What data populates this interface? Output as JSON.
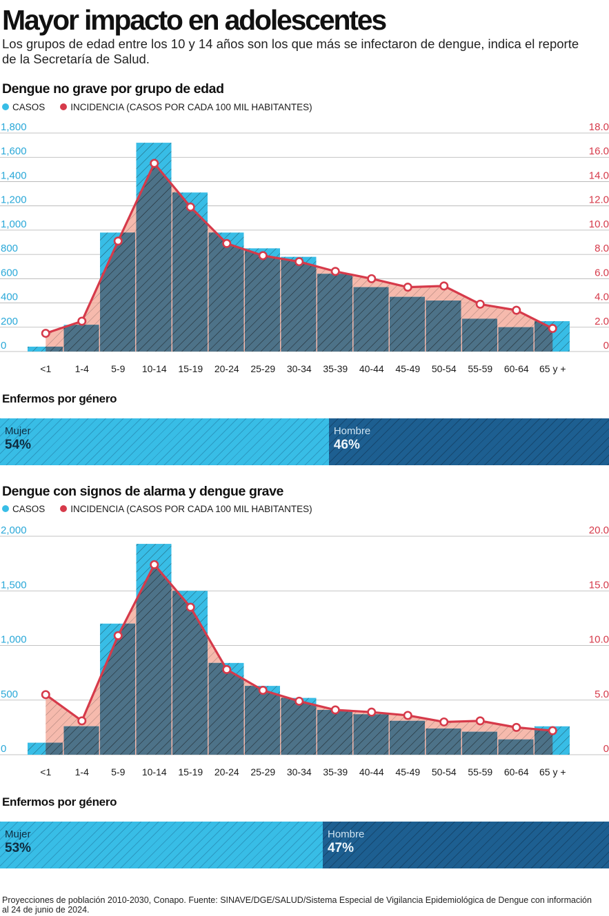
{
  "title": "Mayor impacto en adolescentes",
  "subtitle": "Los grupos de edad entre los 10 y 14 años son los que más se infectaron de dengue, indica el reporte de la Secretaría de Salud.",
  "colors": {
    "bars": "#38bde6",
    "overlap": "#4d7288",
    "incidence": "#d63a4a",
    "incidence_fill": "#f4a998",
    "left_axis": "#2aa8d8",
    "right_axis": "#d63a4a",
    "women": "#38bde6",
    "men": "#1d5f91"
  },
  "legend": {
    "cases": "CASOS",
    "incidence": "INCIDENCIA (CASOS POR CADA 100 MIL HABITANTES)"
  },
  "gender_title": "Enfermos por género",
  "chart_data": [
    {
      "type": "bar+line",
      "title": "Dengue no grave por grupo de edad",
      "categories": [
        "<1",
        "1-4",
        "5-9",
        "10-14",
        "15-19",
        "20-24",
        "25-29",
        "30-34",
        "35-39",
        "40-44",
        "45-49",
        "50-54",
        "55-59",
        "60-64",
        "65 y +"
      ],
      "series": [
        {
          "name": "CASOS",
          "axis": "left",
          "values": [
            40,
            220,
            980,
            1720,
            1310,
            980,
            850,
            780,
            640,
            530,
            450,
            420,
            270,
            200,
            250
          ]
        },
        {
          "name": "INCIDENCIA (CASOS POR CADA 100 MIL HABITANTES)",
          "axis": "right",
          "values": [
            1.5,
            2.5,
            9.1,
            15.5,
            11.9,
            8.9,
            7.9,
            7.4,
            6.6,
            6.0,
            5.3,
            5.4,
            3.9,
            3.4,
            1.9
          ]
        }
      ],
      "ylim_left": [
        0,
        1800
      ],
      "ylim_right": [
        0,
        18
      ],
      "left_ticks": [
        0,
        200,
        400,
        600,
        800,
        1000,
        1200,
        1400,
        1600,
        1800
      ],
      "left_tick_labels": [
        "0",
        "200",
        "400",
        "600",
        "800",
        "1,000",
        "1,200",
        "1,400",
        "1,600",
        "1,800"
      ],
      "right_tick_labels": [
        "0",
        "2.0",
        "4.0",
        "6.0",
        "8.0",
        "10.0",
        "12.0",
        "14.0",
        "16.0",
        "18.0"
      ],
      "grid": true
    },
    {
      "type": "bar+line",
      "title": "Dengue con signos de alarma y dengue grave",
      "categories": [
        "<1",
        "1-4",
        "5-9",
        "10-14",
        "15-19",
        "20-24",
        "25-29",
        "30-34",
        "35-39",
        "40-44",
        "45-49",
        "50-54",
        "55-59",
        "60-64",
        "65 y +"
      ],
      "series": [
        {
          "name": "CASOS",
          "axis": "left",
          "values": [
            110,
            260,
            1200,
            1930,
            1500,
            840,
            630,
            520,
            410,
            370,
            310,
            240,
            210,
            140,
            260
          ]
        },
        {
          "name": "INCIDENCIA (CASOS POR CADA 100 MIL HABITANTES)",
          "axis": "right",
          "values": [
            5.5,
            3.1,
            10.9,
            17.4,
            13.5,
            7.8,
            5.9,
            4.9,
            4.1,
            3.9,
            3.6,
            3.0,
            3.1,
            2.5,
            2.2
          ]
        }
      ],
      "ylim_left": [
        0,
        2000
      ],
      "ylim_right": [
        0,
        20
      ],
      "left_ticks": [
        0,
        500,
        1000,
        1500,
        2000
      ],
      "left_tick_labels": [
        "0",
        "500",
        "1,000",
        "1,500",
        "2,000"
      ],
      "right_tick_labels": [
        "0",
        "5.0",
        "10.0",
        "15.0",
        "20.0"
      ],
      "grid": true
    }
  ],
  "gender": [
    {
      "women_label": "Mujer",
      "women_pct": "54%",
      "women_value": 54,
      "men_label": "Hombre",
      "men_pct": "46%",
      "men_value": 46
    },
    {
      "women_label": "Mujer",
      "women_pct": "53%",
      "women_value": 53,
      "men_label": "Hombre",
      "men_pct": "47%",
      "men_value": 47
    }
  ],
  "source": "Proyecciones de población 2010-2030, Conapo. Fuente: SINAVE/DGE/SALUD/Sistema Especial de Vigilancia Epidemiológica de Dengue con información al 24 de junio de 2024."
}
